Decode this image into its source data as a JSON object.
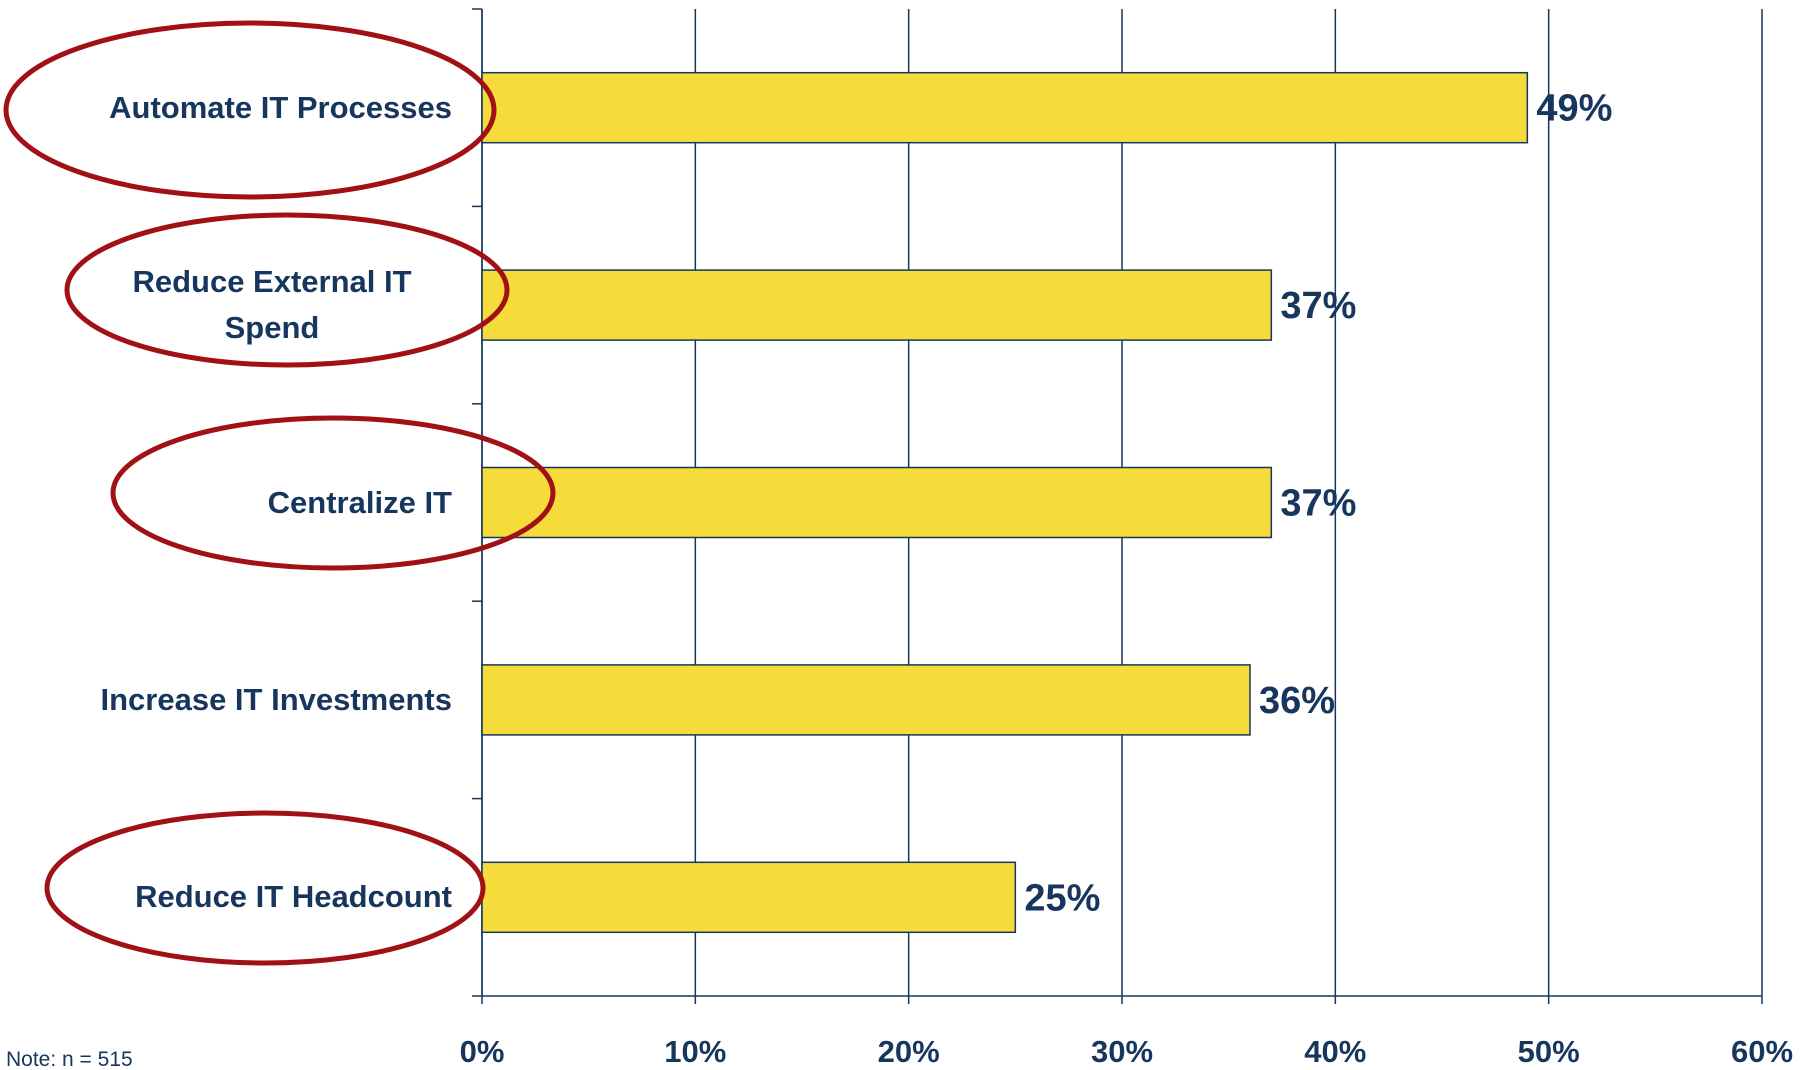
{
  "chart_data": {
    "type": "bar",
    "orientation": "horizontal",
    "categories": [
      "Automate IT Processes",
      "Reduce External IT Spend",
      "Centralize IT",
      "Increase IT Investments",
      "Reduce IT Headcount"
    ],
    "values": [
      49,
      37,
      37,
      36,
      25
    ],
    "value_labels": [
      "49%",
      "37%",
      "37%",
      "36%",
      "25%"
    ],
    "color": "#f6dc3a",
    "xlim": [
      0,
      60
    ],
    "xticks": [
      {
        "value": 0,
        "label": "0%"
      },
      {
        "value": 10,
        "label": "10%"
      },
      {
        "value": 20,
        "label": "20%"
      },
      {
        "value": 30,
        "label": "30%"
      },
      {
        "value": 40,
        "label": "40%"
      },
      {
        "value": 50,
        "label": "50%"
      },
      {
        "value": 60,
        "label": "60%"
      }
    ],
    "grid": true,
    "note": "Note: n = 515"
  }
}
